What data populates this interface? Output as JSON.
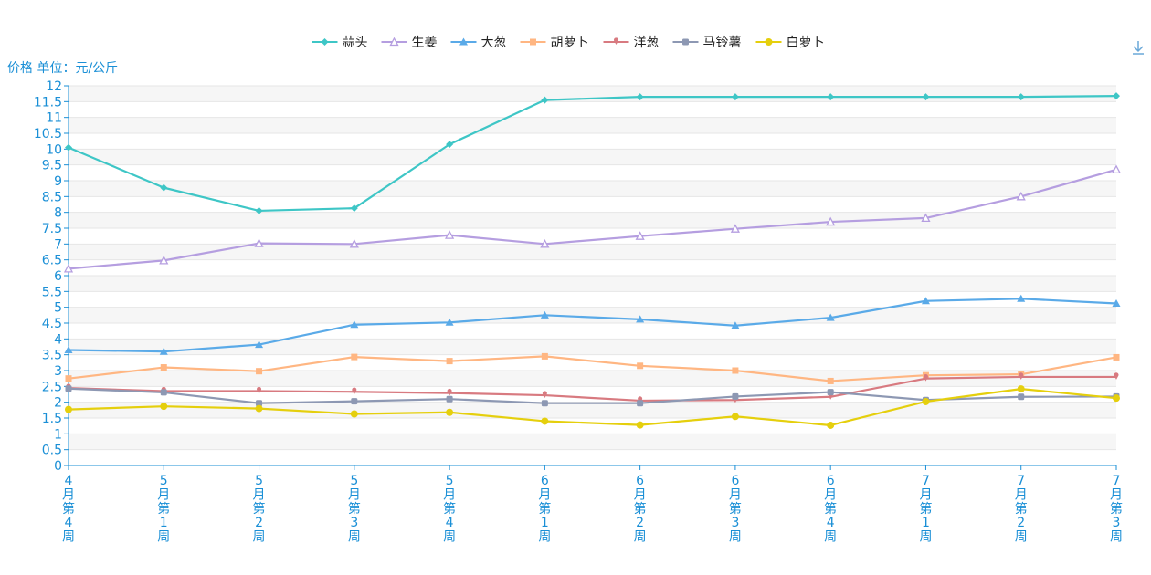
{
  "chart_data": {
    "type": "line",
    "ylabel": "价格 单位：元/公斤",
    "ylim": [
      0,
      12
    ],
    "ytick_step": 0.5,
    "categories": [
      "4月第4周",
      "5月第1周",
      "5月第2周",
      "5月第3周",
      "5月第4周",
      "6月第1周",
      "6月第2周",
      "6月第3周",
      "6月第4周",
      "7月第1周",
      "7月第2周",
      "7月第3周"
    ],
    "legend_position": "top-center",
    "grid": true,
    "series": [
      {
        "name": "蒜头",
        "color": "#3ec6c6",
        "marker": "diamond",
        "values": [
          10.05,
          8.78,
          8.05,
          8.13,
          10.15,
          11.55,
          11.65,
          11.65,
          11.65,
          11.65,
          11.65,
          11.68
        ]
      },
      {
        "name": "生姜",
        "color": "#b59ee0",
        "marker": "triangle-hollow",
        "values": [
          6.22,
          6.48,
          7.02,
          7.0,
          7.28,
          7.0,
          7.25,
          7.48,
          7.7,
          7.82,
          8.5,
          9.35
        ]
      },
      {
        "name": "大葱",
        "color": "#5aaae8",
        "marker": "triangle",
        "values": [
          3.65,
          3.6,
          3.82,
          4.45,
          4.52,
          4.75,
          4.62,
          4.42,
          4.67,
          5.2,
          5.27,
          5.12
        ]
      },
      {
        "name": "胡萝卜",
        "color": "#ffb682",
        "marker": "square",
        "values": [
          2.75,
          3.1,
          2.98,
          3.43,
          3.3,
          3.45,
          3.15,
          3.0,
          2.67,
          2.85,
          2.88,
          3.42
        ]
      },
      {
        "name": "洋葱",
        "color": "#d87a80",
        "marker": "pin",
        "values": [
          2.45,
          2.35,
          2.35,
          2.33,
          2.29,
          2.22,
          2.05,
          2.07,
          2.17,
          2.75,
          2.8,
          2.8
        ]
      },
      {
        "name": "马铃薯",
        "color": "#8d98b3",
        "marker": "roundrect",
        "values": [
          2.43,
          2.31,
          1.97,
          2.03,
          2.1,
          1.97,
          1.97,
          2.18,
          2.32,
          2.07,
          2.17,
          2.18
        ]
      },
      {
        "name": "白萝卜",
        "color": "#e5cf0d",
        "marker": "circle",
        "values": [
          1.77,
          1.87,
          1.8,
          1.63,
          1.68,
          1.4,
          1.28,
          1.55,
          1.27,
          2.02,
          2.42,
          2.13
        ]
      }
    ]
  },
  "toolbar": {
    "download_icon": "download-icon"
  }
}
